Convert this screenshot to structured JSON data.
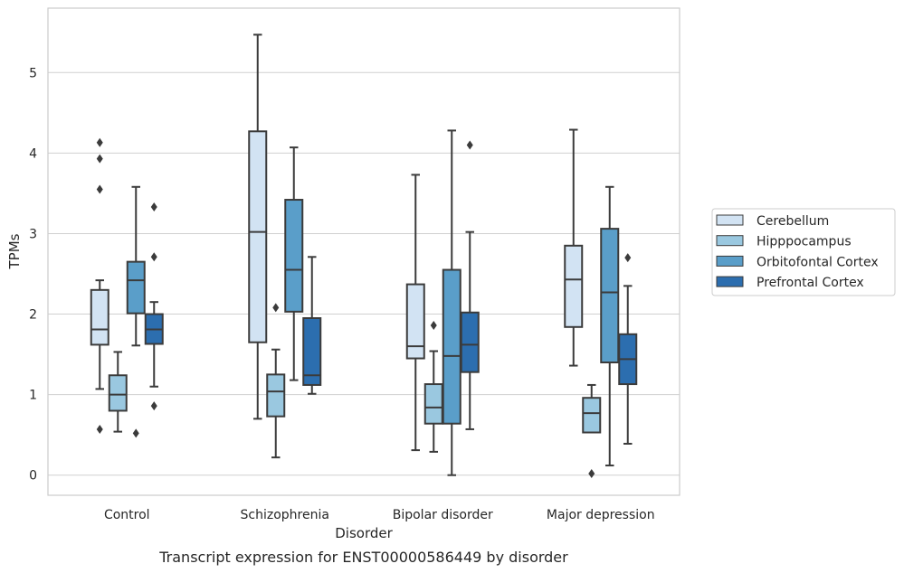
{
  "chart_data": {
    "type": "box",
    "title": "",
    "caption": "Transcript expression for ENST00000586449 by disorder",
    "xlabel": "Disorder",
    "ylabel": "TPMs",
    "ylim": [
      -0.25,
      5.8
    ],
    "yticks": [
      "0",
      "1",
      "2",
      "3",
      "4",
      "5"
    ],
    "grid": "horizontal",
    "legend_position": "right",
    "categories": [
      "Control",
      "Schizophrenia",
      "Bipolar disorder",
      "Major depression"
    ],
    "series": [
      {
        "name": "Cerebellum",
        "color": "#d2e3f3",
        "boxes": [
          {
            "whisker_low": 1.07,
            "q1": 1.62,
            "median": 1.81,
            "q3": 2.3,
            "whisker_high": 2.42,
            "outliers": [
              0.57,
              3.55,
              3.93,
              4.13
            ]
          },
          {
            "whisker_low": 0.7,
            "q1": 1.65,
            "median": 3.02,
            "q3": 4.27,
            "whisker_high": 5.47,
            "outliers": []
          },
          {
            "whisker_low": 0.31,
            "q1": 1.45,
            "median": 1.6,
            "q3": 2.37,
            "whisker_high": 3.73,
            "outliers": []
          },
          {
            "whisker_low": 1.36,
            "q1": 1.84,
            "median": 2.43,
            "q3": 2.85,
            "whisker_high": 4.29,
            "outliers": []
          }
        ]
      },
      {
        "name": "Hipppocampus",
        "color": "#9ac8e0",
        "boxes": [
          {
            "whisker_low": 0.54,
            "q1": 0.8,
            "median": 1.0,
            "q3": 1.24,
            "whisker_high": 1.53,
            "outliers": []
          },
          {
            "whisker_low": 0.22,
            "q1": 0.73,
            "median": 1.04,
            "q3": 1.25,
            "whisker_high": 1.56,
            "outliers": [
              2.08
            ]
          },
          {
            "whisker_low": 0.29,
            "q1": 0.64,
            "median": 0.84,
            "q3": 1.13,
            "whisker_high": 1.54,
            "outliers": [
              1.86
            ]
          },
          {
            "whisker_low": 0.53,
            "q1": 0.53,
            "median": 0.77,
            "q3": 0.96,
            "whisker_high": 1.12,
            "outliers": [
              0.02
            ]
          }
        ]
      },
      {
        "name": "Orbitofontal Cortex",
        "color": "#5a9ec9",
        "boxes": [
          {
            "whisker_low": 1.61,
            "q1": 2.01,
            "median": 2.42,
            "q3": 2.65,
            "whisker_high": 3.58,
            "outliers": [
              0.52
            ]
          },
          {
            "whisker_low": 1.18,
            "q1": 2.03,
            "median": 2.55,
            "q3": 3.42,
            "whisker_high": 4.07,
            "outliers": []
          },
          {
            "whisker_low": 0.0,
            "q1": 0.64,
            "median": 1.48,
            "q3": 2.55,
            "whisker_high": 4.28,
            "outliers": []
          },
          {
            "whisker_low": 0.12,
            "q1": 1.4,
            "median": 2.27,
            "q3": 3.06,
            "whisker_high": 3.58,
            "outliers": []
          }
        ]
      },
      {
        "name": "Prefrontal Cortex",
        "color": "#2c6eaf",
        "boxes": [
          {
            "whisker_low": 1.1,
            "q1": 1.63,
            "median": 1.81,
            "q3": 2.0,
            "whisker_high": 2.15,
            "outliers": [
              0.86,
              2.71,
              3.33
            ]
          },
          {
            "whisker_low": 1.01,
            "q1": 1.12,
            "median": 1.24,
            "q3": 1.95,
            "whisker_high": 2.71,
            "outliers": []
          },
          {
            "whisker_low": 0.57,
            "q1": 1.28,
            "median": 1.62,
            "q3": 2.02,
            "whisker_high": 3.02,
            "outliers": [
              4.1
            ]
          },
          {
            "whisker_low": 0.39,
            "q1": 1.13,
            "median": 1.44,
            "q3": 1.75,
            "whisker_high": 2.35,
            "outliers": [
              2.7
            ]
          }
        ]
      }
    ]
  }
}
